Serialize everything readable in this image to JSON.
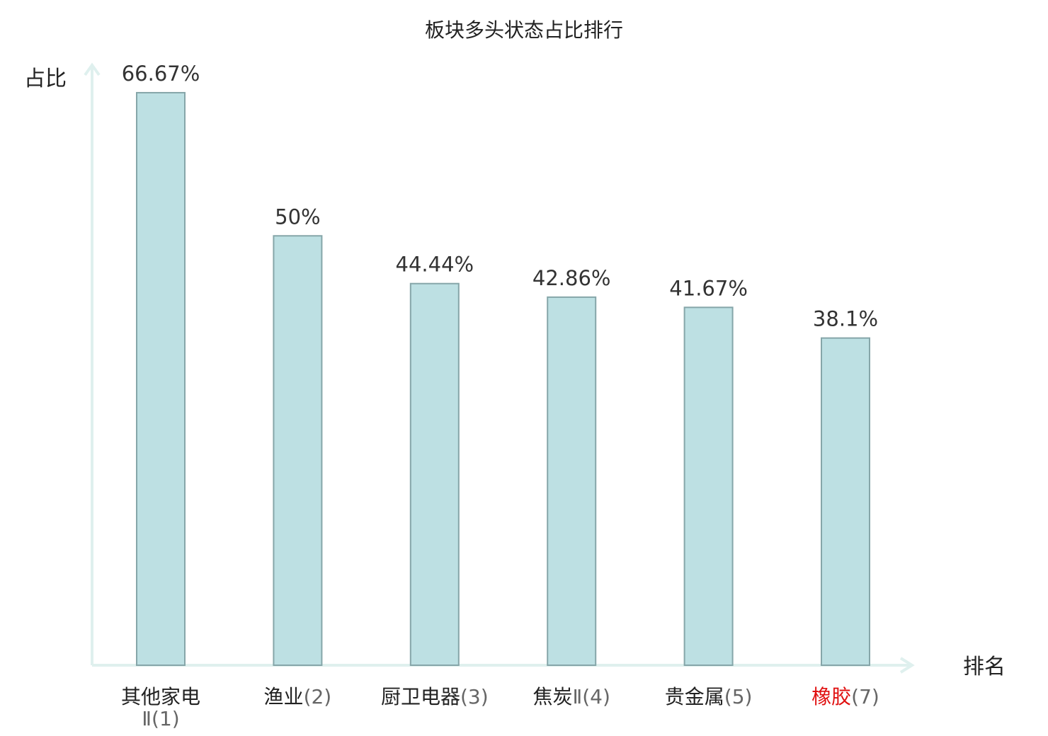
{
  "chart_data": {
    "type": "bar",
    "title": "板块多头状态占比排行",
    "ylabel": "占比",
    "xlabel": "排名",
    "ylim": [
      0,
      70
    ],
    "grid": false,
    "categories": [
      {
        "name": "其他家电",
        "rank": "Ⅱ(1)",
        "value": 66.67,
        "label": "66.67%",
        "color": "#222222",
        "wrap": true
      },
      {
        "name": "渔业",
        "rank": "(2)",
        "value": 50,
        "label": "50%",
        "color": "#222222",
        "wrap": false
      },
      {
        "name": "厨卫电器",
        "rank": "(3)",
        "value": 44.44,
        "label": "44.44%",
        "color": "#222222",
        "wrap": false
      },
      {
        "name": "焦炭",
        "rank": "Ⅱ(4)",
        "value": 42.86,
        "label": "42.86%",
        "color": "#222222",
        "wrap": false
      },
      {
        "name": "贵金属",
        "rank": "(5)",
        "value": 41.67,
        "label": "41.67%",
        "color": "#222222",
        "wrap": false
      },
      {
        "name": "橡胶",
        "rank": "(7)",
        "value": 38.1,
        "label": "38.1%",
        "color": "#e01010",
        "wrap": false
      }
    ],
    "colors": {
      "bar_fill": "#bde0e3",
      "bar_stroke": "#86a6a9",
      "axis": "#dff0ee",
      "highlight": "#e01010"
    }
  }
}
